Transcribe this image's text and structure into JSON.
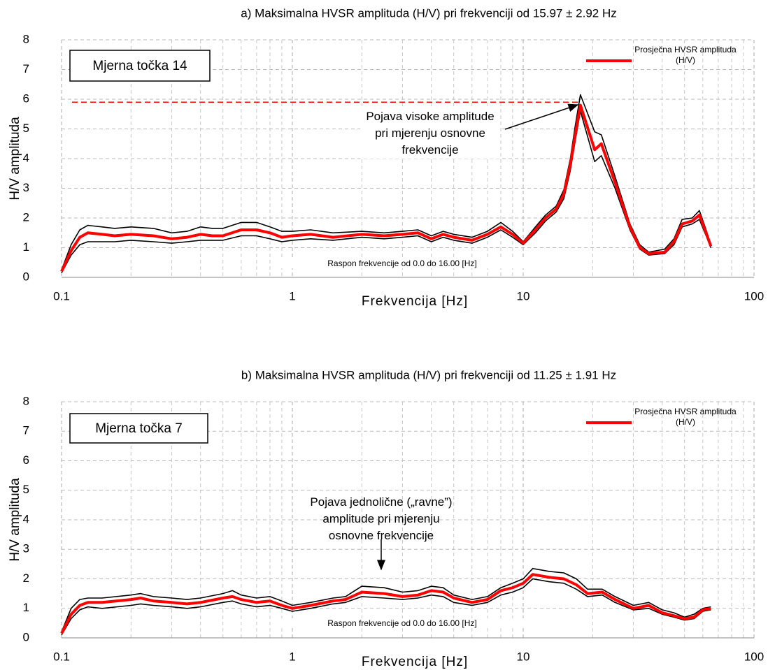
{
  "chart_data": [
    {
      "type": "line",
      "title": "a) Maksimalna HVSR amplituda (H/V) pri frekvenciji od 15.97 ± 2.92 Hz",
      "xlabel": "Frekvencija [Hz]",
      "ylabel": "H/V amplituda",
      "label_box": "Mjerna točka 14",
      "note": "Raspon frekvencije od 0.0 do 16.00 [Hz]",
      "annotation": "Pojava visoke amplitude pri mjerenju osnovne frekvencije",
      "x": [
        0.1,
        0.11,
        0.12,
        0.13,
        0.15,
        0.17,
        0.2,
        0.25,
        0.3,
        0.35,
        0.4,
        0.45,
        0.5,
        0.6,
        0.7,
        0.8,
        0.9,
        1,
        1.2,
        1.5,
        2,
        2.5,
        3,
        3.5,
        4,
        4.5,
        5,
        6,
        7,
        8,
        9,
        10,
        11.3,
        12.5,
        13.9,
        15,
        16,
        16.8,
        17.7,
        20.4,
        21.8,
        25,
        29,
        32,
        35,
        41,
        45,
        48.8,
        54,
        58,
        62,
        65
      ],
      "series": [
        {
          "name": "Prosječna HVSR amplituda (H/V)",
          "color": "#ff0000",
          "values": [
            0.2,
            0.9,
            1.35,
            1.5,
            1.45,
            1.4,
            1.45,
            1.4,
            1.3,
            1.35,
            1.45,
            1.4,
            1.4,
            1.6,
            1.6,
            1.5,
            1.35,
            1.4,
            1.45,
            1.35,
            1.45,
            1.4,
            1.45,
            1.5,
            1.3,
            1.45,
            1.35,
            1.25,
            1.45,
            1.7,
            1.45,
            1.15,
            1.6,
            2.0,
            2.3,
            2.8,
            3.8,
            4.8,
            5.8,
            4.3,
            4.5,
            3.2,
            1.7,
            1.0,
            0.8,
            0.85,
            1.2,
            1.8,
            1.9,
            2.1,
            1.5,
            1.05
          ]
        },
        {
          "color": "#000000",
          "values": [
            0.25,
            1.1,
            1.6,
            1.75,
            1.7,
            1.65,
            1.7,
            1.65,
            1.5,
            1.55,
            1.7,
            1.65,
            1.65,
            1.85,
            1.85,
            1.7,
            1.55,
            1.55,
            1.6,
            1.5,
            1.55,
            1.5,
            1.55,
            1.6,
            1.4,
            1.55,
            1.45,
            1.35,
            1.55,
            1.85,
            1.55,
            1.2,
            1.7,
            2.1,
            2.4,
            2.95,
            4.0,
            5.1,
            6.15,
            4.9,
            4.8,
            3.4,
            1.8,
            1.1,
            0.85,
            0.95,
            1.3,
            1.95,
            2.0,
            2.25,
            1.6,
            1.1
          ]
        },
        {
          "color": "#000000",
          "values": [
            0.15,
            0.75,
            1.1,
            1.2,
            1.2,
            1.2,
            1.25,
            1.2,
            1.15,
            1.2,
            1.25,
            1.25,
            1.25,
            1.4,
            1.4,
            1.3,
            1.2,
            1.25,
            1.3,
            1.25,
            1.35,
            1.3,
            1.35,
            1.4,
            1.2,
            1.35,
            1.25,
            1.15,
            1.35,
            1.6,
            1.35,
            1.1,
            1.5,
            1.9,
            2.2,
            2.65,
            3.6,
            4.6,
            5.6,
            3.9,
            4.1,
            3.0,
            1.6,
            0.95,
            0.75,
            0.8,
            1.1,
            1.7,
            1.8,
            1.95,
            1.4,
            1.0
          ]
        }
      ],
      "hline": 5.9,
      "hline_color": "#ff0000",
      "xlim": [
        0.1,
        100
      ],
      "ylim": [
        0,
        8
      ],
      "xticks": [
        0.1,
        1,
        10,
        100
      ],
      "yticks": [
        0,
        1,
        2,
        3,
        4,
        5,
        6,
        7,
        8
      ],
      "xminor": [
        0.2,
        0.3,
        0.4,
        0.5,
        0.6,
        0.7,
        0.8,
        0.9,
        2,
        3,
        4,
        5,
        6,
        7,
        8,
        9,
        20,
        30,
        40,
        50,
        60,
        70,
        80,
        90
      ],
      "log_x": true,
      "grid": true,
      "legend": "upper right"
    },
    {
      "type": "line",
      "title": "b) Maksimalna HVSR amplituda (H/V) pri frekvenciji od 11.25 ± 1.91 Hz",
      "xlabel": "Frekvencija [Hz]",
      "ylabel": "H/V amplituda",
      "label_box": "Mjerna točka 7",
      "note": "Raspon frekvencije od 0.0 do 16.00 [Hz]",
      "annotation": "Pojava jednolične („ravne”) amplitude pri mjerenju osnovne frekvencije",
      "x": [
        0.1,
        0.11,
        0.12,
        0.13,
        0.15,
        0.2,
        0.22,
        0.25,
        0.3,
        0.35,
        0.4,
        0.5,
        0.55,
        0.6,
        0.7,
        0.8,
        0.9,
        1,
        1.2,
        1.5,
        1.7,
        2,
        2.5,
        3,
        3.5,
        4,
        4.5,
        5,
        6,
        7,
        8,
        9,
        10,
        11,
        13,
        15,
        17,
        19,
        22,
        25,
        30,
        35,
        40,
        45,
        50,
        55,
        60,
        65
      ],
      "series": [
        {
          "name": "Prosječna HVSR amplituda (H/V)",
          "color": "#ff0000",
          "values": [
            0.15,
            0.8,
            1.1,
            1.2,
            1.2,
            1.3,
            1.35,
            1.25,
            1.2,
            1.15,
            1.2,
            1.35,
            1.4,
            1.3,
            1.2,
            1.25,
            1.1,
            1.0,
            1.1,
            1.25,
            1.3,
            1.55,
            1.5,
            1.4,
            1.45,
            1.6,
            1.55,
            1.35,
            1.2,
            1.3,
            1.6,
            1.7,
            1.85,
            2.15,
            2.05,
            2.0,
            1.8,
            1.5,
            1.55,
            1.3,
            1.0,
            1.1,
            0.85,
            0.75,
            0.65,
            0.7,
            0.95,
            1.0
          ]
        },
        {
          "color": "#000000",
          "values": [
            0.2,
            1.0,
            1.3,
            1.35,
            1.35,
            1.45,
            1.5,
            1.4,
            1.35,
            1.3,
            1.35,
            1.5,
            1.6,
            1.45,
            1.35,
            1.4,
            1.25,
            1.1,
            1.2,
            1.35,
            1.4,
            1.75,
            1.7,
            1.55,
            1.6,
            1.75,
            1.7,
            1.45,
            1.3,
            1.4,
            1.7,
            1.85,
            2.0,
            2.35,
            2.25,
            2.2,
            2.0,
            1.65,
            1.65,
            1.4,
            1.1,
            1.2,
            0.95,
            0.85,
            0.7,
            0.8,
            1.0,
            1.05
          ]
        },
        {
          "color": "#000000",
          "values": [
            0.1,
            0.65,
            0.95,
            1.05,
            1.0,
            1.1,
            1.15,
            1.1,
            1.05,
            1.0,
            1.05,
            1.2,
            1.25,
            1.15,
            1.05,
            1.1,
            1.0,
            0.9,
            1.0,
            1.15,
            1.2,
            1.4,
            1.35,
            1.3,
            1.35,
            1.45,
            1.4,
            1.2,
            1.1,
            1.2,
            1.45,
            1.55,
            1.7,
            2.0,
            1.9,
            1.85,
            1.65,
            1.4,
            1.45,
            1.2,
            0.95,
            1.0,
            0.8,
            0.7,
            0.6,
            0.65,
            0.9,
            0.95
          ]
        }
      ],
      "xlim": [
        0.1,
        100
      ],
      "ylim": [
        0,
        8
      ],
      "xticks": [
        0.1,
        1,
        10,
        100
      ],
      "yticks": [
        0,
        1,
        2,
        3,
        4,
        5,
        6,
        7,
        8
      ],
      "xminor": [
        0.2,
        0.3,
        0.4,
        0.5,
        0.6,
        0.7,
        0.8,
        0.9,
        2,
        3,
        4,
        5,
        6,
        7,
        8,
        9,
        20,
        30,
        40,
        50,
        60,
        70,
        80,
        90
      ],
      "log_x": true,
      "grid": true,
      "legend": "upper right"
    }
  ]
}
